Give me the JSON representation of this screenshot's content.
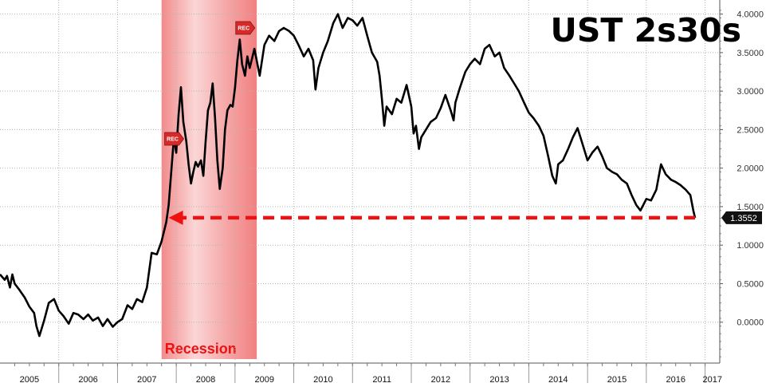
{
  "chart_data": {
    "type": "line",
    "title": "UST 2s30s",
    "xlabel": "",
    "ylabel": "",
    "x_tick_labels": [
      "2005",
      "2006",
      "2007",
      "2008",
      "2009",
      "2010",
      "2011",
      "2012",
      "2013",
      "2014",
      "2015",
      "2016",
      "2017"
    ],
    "y_tick_labels": [
      "0.0000",
      "0.5000",
      "1.0000",
      "1.5000",
      "2.0000",
      "2.5000",
      "3.0000",
      "3.5000",
      "4.0000"
    ],
    "ylim": [
      -0.5,
      4.1
    ],
    "xlim": [
      2005.0,
      2017.25
    ],
    "grid": true,
    "y_axis_side": "right",
    "series": [
      {
        "name": "",
        "color": "#000000",
        "points": [
          [
            2005.0,
            0.62
          ],
          [
            2005.08,
            0.55
          ],
          [
            2005.12,
            0.6
          ],
          [
            2005.17,
            0.45
          ],
          [
            2005.21,
            0.62
          ],
          [
            2005.25,
            0.5
          ],
          [
            2005.33,
            0.42
          ],
          [
            2005.42,
            0.32
          ],
          [
            2005.5,
            0.2
          ],
          [
            2005.58,
            0.12
          ],
          [
            2005.62,
            -0.05
          ],
          [
            2005.67,
            -0.18
          ],
          [
            2005.75,
            0.02
          ],
          [
            2005.83,
            0.25
          ],
          [
            2005.92,
            0.3
          ],
          [
            2006.0,
            0.15
          ],
          [
            2006.08,
            0.08
          ],
          [
            2006.17,
            -0.02
          ],
          [
            2006.25,
            0.12
          ],
          [
            2006.33,
            0.1
          ],
          [
            2006.42,
            0.04
          ],
          [
            2006.5,
            0.1
          ],
          [
            2006.58,
            0.02
          ],
          [
            2006.67,
            0.06
          ],
          [
            2006.75,
            -0.05
          ],
          [
            2006.83,
            0.04
          ],
          [
            2006.92,
            -0.06
          ],
          [
            2007.0,
            0.0
          ],
          [
            2007.08,
            0.04
          ],
          [
            2007.17,
            0.22
          ],
          [
            2007.25,
            0.17
          ],
          [
            2007.33,
            0.3
          ],
          [
            2007.42,
            0.26
          ],
          [
            2007.5,
            0.45
          ],
          [
            2007.58,
            0.9
          ],
          [
            2007.67,
            0.88
          ],
          [
            2007.75,
            1.05
          ],
          [
            2007.83,
            1.3
          ],
          [
            2007.87,
            1.52
          ],
          [
            2007.92,
            2.0
          ],
          [
            2007.96,
            2.4
          ],
          [
            2008.0,
            2.2
          ],
          [
            2008.04,
            2.7
          ],
          [
            2008.08,
            3.05
          ],
          [
            2008.12,
            2.6
          ],
          [
            2008.17,
            2.35
          ],
          [
            2008.21,
            2.05
          ],
          [
            2008.25,
            1.8
          ],
          [
            2008.29,
            1.95
          ],
          [
            2008.33,
            2.08
          ],
          [
            2008.37,
            2.02
          ],
          [
            2008.42,
            2.1
          ],
          [
            2008.46,
            1.9
          ],
          [
            2008.5,
            2.35
          ],
          [
            2008.54,
            2.75
          ],
          [
            2008.58,
            2.85
          ],
          [
            2008.62,
            3.1
          ],
          [
            2008.66,
            2.65
          ],
          [
            2008.7,
            2.1
          ],
          [
            2008.74,
            1.73
          ],
          [
            2008.79,
            2.0
          ],
          [
            2008.83,
            2.5
          ],
          [
            2008.87,
            2.75
          ],
          [
            2008.92,
            2.82
          ],
          [
            2008.96,
            2.8
          ],
          [
            2009.0,
            3.05
          ],
          [
            2009.04,
            3.4
          ],
          [
            2009.08,
            3.67
          ],
          [
            2009.12,
            3.35
          ],
          [
            2009.17,
            3.2
          ],
          [
            2009.21,
            3.45
          ],
          [
            2009.25,
            3.3
          ],
          [
            2009.33,
            3.55
          ],
          [
            2009.42,
            3.2
          ],
          [
            2009.5,
            3.6
          ],
          [
            2009.58,
            3.72
          ],
          [
            2009.67,
            3.65
          ],
          [
            2009.75,
            3.78
          ],
          [
            2009.83,
            3.82
          ],
          [
            2009.92,
            3.78
          ],
          [
            2010.0,
            3.72
          ],
          [
            2010.08,
            3.6
          ],
          [
            2010.17,
            3.45
          ],
          [
            2010.25,
            3.55
          ],
          [
            2010.33,
            3.4
          ],
          [
            2010.37,
            3.02
          ],
          [
            2010.42,
            3.3
          ],
          [
            2010.5,
            3.5
          ],
          [
            2010.58,
            3.65
          ],
          [
            2010.67,
            3.88
          ],
          [
            2010.75,
            4.0
          ],
          [
            2010.83,
            3.82
          ],
          [
            2010.92,
            3.95
          ],
          [
            2011.0,
            3.92
          ],
          [
            2011.08,
            3.85
          ],
          [
            2011.17,
            3.95
          ],
          [
            2011.25,
            3.72
          ],
          [
            2011.33,
            3.5
          ],
          [
            2011.42,
            3.38
          ],
          [
            2011.46,
            3.2
          ],
          [
            2011.5,
            2.9
          ],
          [
            2011.54,
            2.55
          ],
          [
            2011.58,
            2.8
          ],
          [
            2011.67,
            2.7
          ],
          [
            2011.75,
            2.9
          ],
          [
            2011.83,
            2.85
          ],
          [
            2011.92,
            3.08
          ],
          [
            2012.0,
            2.8
          ],
          [
            2012.04,
            2.45
          ],
          [
            2012.08,
            2.55
          ],
          [
            2012.13,
            2.25
          ],
          [
            2012.17,
            2.4
          ],
          [
            2012.25,
            2.5
          ],
          [
            2012.33,
            2.6
          ],
          [
            2012.42,
            2.65
          ],
          [
            2012.5,
            2.78
          ],
          [
            2012.58,
            2.95
          ],
          [
            2012.67,
            2.75
          ],
          [
            2012.72,
            2.62
          ],
          [
            2012.75,
            2.85
          ],
          [
            2012.83,
            3.05
          ],
          [
            2012.92,
            3.25
          ],
          [
            2013.0,
            3.35
          ],
          [
            2013.08,
            3.42
          ],
          [
            2013.17,
            3.35
          ],
          [
            2013.25,
            3.55
          ],
          [
            2013.33,
            3.6
          ],
          [
            2013.42,
            3.45
          ],
          [
            2013.5,
            3.5
          ],
          [
            2013.58,
            3.3
          ],
          [
            2013.67,
            3.2
          ],
          [
            2013.75,
            3.1
          ],
          [
            2013.83,
            3.0
          ],
          [
            2013.92,
            2.85
          ],
          [
            2014.0,
            2.72
          ],
          [
            2014.08,
            2.65
          ],
          [
            2014.17,
            2.55
          ],
          [
            2014.25,
            2.42
          ],
          [
            2014.33,
            2.15
          ],
          [
            2014.4,
            1.9
          ],
          [
            2014.46,
            1.8
          ],
          [
            2014.5,
            2.05
          ],
          [
            2014.58,
            2.1
          ],
          [
            2014.67,
            2.25
          ],
          [
            2014.75,
            2.4
          ],
          [
            2014.83,
            2.52
          ],
          [
            2014.92,
            2.3
          ],
          [
            2015.0,
            2.1
          ],
          [
            2015.08,
            2.2
          ],
          [
            2015.17,
            2.28
          ],
          [
            2015.25,
            2.15
          ],
          [
            2015.33,
            2.0
          ],
          [
            2015.42,
            1.95
          ],
          [
            2015.5,
            1.92
          ],
          [
            2015.58,
            1.85
          ],
          [
            2015.67,
            1.8
          ],
          [
            2015.75,
            1.65
          ],
          [
            2015.83,
            1.52
          ],
          [
            2015.9,
            1.45
          ],
          [
            2016.0,
            1.6
          ],
          [
            2016.08,
            1.58
          ],
          [
            2016.17,
            1.72
          ],
          [
            2016.25,
            2.05
          ],
          [
            2016.33,
            1.92
          ],
          [
            2016.42,
            1.85
          ],
          [
            2016.5,
            1.82
          ],
          [
            2016.58,
            1.78
          ],
          [
            2016.67,
            1.72
          ],
          [
            2016.75,
            1.65
          ],
          [
            2016.8,
            1.45
          ],
          [
            2016.83,
            1.3552
          ]
        ]
      }
    ],
    "recession": {
      "label": "Recession",
      "start": 2007.75,
      "end": 2009.37,
      "color": "#f4a0a0"
    },
    "rec_markers": [
      {
        "label": "REC",
        "x": 2007.87,
        "y": 2.38
      },
      {
        "label": "REC",
        "x": 2009.08,
        "y": 3.82
      }
    ],
    "reference_arrow": {
      "y": 1.3552,
      "x_from": 2016.83,
      "x_to": 2007.87,
      "color": "#ee1111"
    },
    "last_value_label": "1.3552"
  }
}
